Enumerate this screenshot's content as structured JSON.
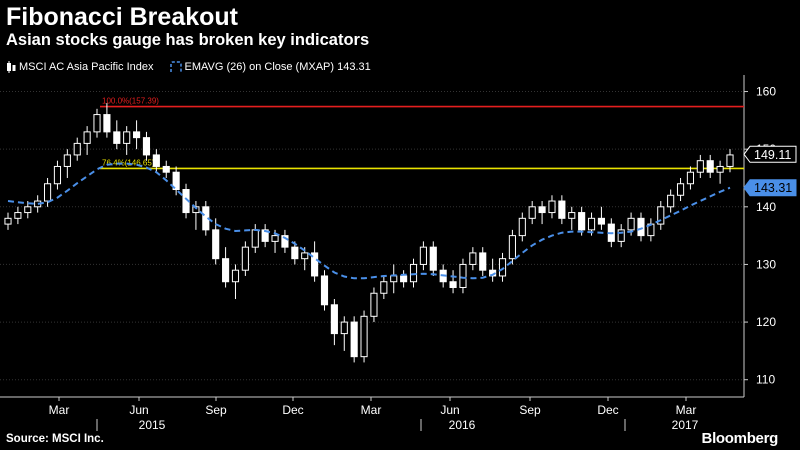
{
  "header": {
    "title": "Fibonacci Breakout",
    "subtitle": "Asian stocks gauge has broken key indicators"
  },
  "legend": {
    "index_label": "MSCI AC Asia Pacific Index",
    "ema_label": "EMAVG (26) on Close (MXAP) 143.31"
  },
  "footer": {
    "source": "Source: MSCI Inc.",
    "brand": "Bloomberg"
  },
  "colors": {
    "background": "#000000",
    "candle": "#ffffff",
    "ema": "#4a8fe8",
    "fib_100": "#e41e1e",
    "fib_764": "#e8e200",
    "grid": "#333333",
    "axis": "#cccccc"
  },
  "chart_data": {
    "type": "candlestick",
    "title": "Fibonacci Breakout",
    "subtitle": "Asian stocks gauge has broken key indicators",
    "ylim": [
      107,
      162
    ],
    "yticks": [
      110,
      120,
      130,
      140,
      150,
      160
    ],
    "x_month_labels": [
      "Mar",
      "Jun",
      "Sep",
      "Dec",
      "Mar",
      "Jun",
      "Sep",
      "Dec",
      "Mar"
    ],
    "x_year_labels": [
      "2015",
      "2016",
      "2017"
    ],
    "fib_levels": [
      {
        "label": "100.0%(157.39)",
        "value": 157.39
      },
      {
        "label": "76.4%(146.65)",
        "value": 146.65
      }
    ],
    "last_close_label": "149.11",
    "last_close": 149.11,
    "ema_last_label": "143.31",
    "ema_last": 143.31,
    "series": [
      {
        "name": "MSCI AC Asia Pacific Index",
        "ohlc": [
          [
            137,
            139,
            136,
            138
          ],
          [
            138,
            140,
            137,
            139
          ],
          [
            139,
            141,
            138,
            140
          ],
          [
            140,
            142,
            139,
            141
          ],
          [
            141,
            145,
            140,
            144
          ],
          [
            144,
            148,
            143,
            147
          ],
          [
            147,
            150,
            145,
            149
          ],
          [
            149,
            152,
            148,
            151
          ],
          [
            151,
            154,
            149,
            153
          ],
          [
            153,
            157,
            152,
            156
          ],
          [
            156,
            158,
            152,
            153
          ],
          [
            153,
            155,
            150,
            151
          ],
          [
            151,
            154,
            149,
            153
          ],
          [
            153,
            155,
            150,
            152
          ],
          [
            152,
            153,
            148,
            149
          ],
          [
            149,
            150,
            146,
            147
          ],
          [
            147,
            148,
            145,
            146
          ],
          [
            146,
            147,
            142,
            143
          ],
          [
            143,
            144,
            138,
            139
          ],
          [
            139,
            141,
            136,
            140
          ],
          [
            140,
            141,
            135,
            136
          ],
          [
            136,
            138,
            130,
            131
          ],
          [
            131,
            133,
            126,
            127
          ],
          [
            127,
            130,
            124,
            129
          ],
          [
            129,
            134,
            128,
            133
          ],
          [
            133,
            137,
            132,
            136
          ],
          [
            136,
            137,
            133,
            134
          ],
          [
            134,
            136,
            132,
            135
          ],
          [
            135,
            136,
            132,
            133
          ],
          [
            133,
            134,
            130,
            131
          ],
          [
            131,
            133,
            129,
            132
          ],
          [
            132,
            134,
            127,
            128
          ],
          [
            128,
            129,
            122,
            123
          ],
          [
            123,
            124,
            116,
            118
          ],
          [
            118,
            121,
            115,
            120
          ],
          [
            120,
            121,
            113,
            114
          ],
          [
            114,
            122,
            113,
            121
          ],
          [
            121,
            126,
            120,
            125
          ],
          [
            125,
            128,
            124,
            127
          ],
          [
            127,
            130,
            125,
            128
          ],
          [
            128,
            129,
            126,
            127
          ],
          [
            127,
            131,
            126,
            130
          ],
          [
            130,
            134,
            129,
            133
          ],
          [
            133,
            134,
            128,
            129
          ],
          [
            129,
            130,
            126,
            127
          ],
          [
            127,
            129,
            125,
            126
          ],
          [
            126,
            131,
            125,
            130
          ],
          [
            130,
            133,
            129,
            132
          ],
          [
            132,
            133,
            128,
            129
          ],
          [
            129,
            131,
            127,
            128
          ],
          [
            128,
            132,
            127,
            131
          ],
          [
            131,
            136,
            130,
            135
          ],
          [
            135,
            139,
            134,
            138
          ],
          [
            138,
            141,
            137,
            140
          ],
          [
            140,
            141,
            137,
            139
          ],
          [
            139,
            142,
            138,
            141
          ],
          [
            141,
            142,
            137,
            138
          ],
          [
            138,
            140,
            136,
            139
          ],
          [
            139,
            140,
            135,
            136
          ],
          [
            136,
            139,
            135,
            138
          ],
          [
            138,
            140,
            136,
            137
          ],
          [
            137,
            138,
            133,
            134
          ],
          [
            134,
            137,
            133,
            136
          ],
          [
            136,
            139,
            135,
            138
          ],
          [
            138,
            139,
            134,
            135
          ],
          [
            135,
            138,
            134,
            137
          ],
          [
            137,
            141,
            136,
            140
          ],
          [
            140,
            143,
            139,
            142
          ],
          [
            142,
            145,
            141,
            144
          ],
          [
            144,
            147,
            143,
            146
          ],
          [
            146,
            149,
            145,
            148
          ],
          [
            148,
            149,
            145,
            146
          ],
          [
            146,
            148,
            144,
            147
          ],
          [
            147,
            150,
            146,
            149
          ]
        ]
      },
      {
        "name": "EMAVG (26) on Close (MXAP)",
        "values": [
          141.0,
          140.8,
          140.6,
          140.5,
          140.8,
          141.6,
          142.8,
          144.1,
          145.3,
          146.5,
          147.3,
          147.5,
          147.5,
          147.3,
          146.8,
          146.0,
          144.6,
          143.0,
          141.4,
          139.8,
          138.3,
          137.0,
          136.2,
          135.8,
          135.9,
          136.0,
          135.8,
          135.4,
          134.6,
          133.6,
          132.4,
          131.1,
          129.8,
          128.6,
          127.9,
          127.6,
          127.6,
          127.8,
          128.0,
          128.1,
          128.2,
          128.3,
          128.4,
          128.3,
          128.1,
          127.9,
          127.7,
          127.6,
          127.7,
          128.2,
          129.2,
          130.6,
          132.0,
          133.3,
          134.3,
          135.0,
          135.5,
          135.7,
          135.7,
          135.6,
          135.5,
          135.4,
          135.5,
          135.7,
          136.2,
          136.9,
          137.7,
          138.5,
          139.3,
          140.2,
          141.0,
          141.8,
          142.6,
          143.31
        ]
      }
    ]
  }
}
